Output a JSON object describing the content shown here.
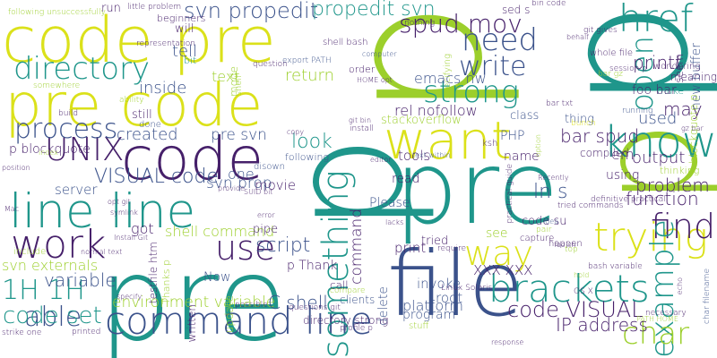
{
  "words": [
    {
      "text": "p",
      "color": "#9ccf2b"
    },
    {
      "text": "p",
      "color": "#1f968b"
    },
    {
      "text": "pre",
      "color": "#1f968b"
    },
    {
      "text": "pre",
      "color": "#1f968b"
    },
    {
      "text": "p",
      "color": "#1f968b"
    },
    {
      "text": "p",
      "color": "#9ccf2b"
    },
    {
      "text": "code pre",
      "color": "#dbe11a"
    },
    {
      "text": "pre code",
      "color": "#dbe11a"
    },
    {
      "text": "file",
      "color": "#3b528b"
    },
    {
      "text": "code",
      "color": "#46206a"
    },
    {
      "text": "want",
      "color": "#dbe11a"
    },
    {
      "text": "line line",
      "color": "#1f968b"
    },
    {
      "text": "command line",
      "color": "#3b528b"
    },
    {
      "text": "know",
      "color": "#1f968b"
    },
    {
      "text": "brackets",
      "color": "#1f968b"
    },
    {
      "text": "something",
      "color": "#1f968b"
    },
    {
      "text": "work",
      "color": "#46206a"
    },
    {
      "text": "use",
      "color": "#46206a"
    },
    {
      "text": "trying",
      "color": "#dbe11a"
    },
    {
      "text": "way",
      "color": "#dbe11a"
    },
    {
      "text": "find",
      "color": "#46206a"
    },
    {
      "text": "href",
      "color": "#1f968b"
    },
    {
      "text": "need",
      "color": "#3b528b"
    },
    {
      "text": "strong",
      "color": "#1f968b"
    },
    {
      "text": "directory",
      "color": "#1f968b"
    },
    {
      "text": "UNIX",
      "color": "#46206a"
    },
    {
      "text": "write",
      "color": "#3b528b"
    },
    {
      "text": "spud mov",
      "color": "#46206a"
    },
    {
      "text": "example",
      "color": "#1f968b"
    },
    {
      "text": "open",
      "color": "#1f968b"
    },
    {
      "text": "char",
      "color": "#9ccf2b"
    },
    {
      "text": "able",
      "color": "#3b528b"
    },
    {
      "text": "1H 1H",
      "color": "#1f968b"
    },
    {
      "text": "code set",
      "color": "#1f968b"
    },
    {
      "text": "process",
      "color": "#3b528b"
    },
    {
      "text": "code VISUAL",
      "color": "#46206a"
    },
    {
      "text": "svn propedit",
      "color": "#3b528b"
    },
    {
      "text": "propedit svn",
      "color": "#1f968b"
    },
    {
      "text": "VISUAL code",
      "color": "#3b528b"
    },
    {
      "text": "script",
      "color": "#3b528b"
    },
    {
      "text": "look",
      "color": "#1f968b"
    },
    {
      "text": "return",
      "color": "#9ccf2b"
    },
    {
      "text": "text",
      "color": "#9ccf2b"
    },
    {
      "text": "tell",
      "color": "#3b528b"
    },
    {
      "text": "inside",
      "color": "#3b528b"
    },
    {
      "text": "created",
      "color": "#3b528b"
    },
    {
      "text": "problem",
      "color": "#46206a"
    },
    {
      "text": "output",
      "color": "#46206a"
    },
    {
      "text": "function",
      "color": "#46206a"
    },
    {
      "text": "printf",
      "color": "#46206a"
    },
    {
      "text": "may",
      "color": "#46206a"
    },
    {
      "text": "used",
      "color": "#3b528b"
    },
    {
      "text": "ln s",
      "color": "#3b528b"
    },
    {
      "text": "bar spud",
      "color": "#46206a"
    },
    {
      "text": "shell command",
      "color": "#9ccf2b"
    },
    {
      "text": "environment variable",
      "color": "#9ccf2b"
    },
    {
      "text": "C shell",
      "color": "#3b528b"
    },
    {
      "text": "IP address",
      "color": "#46206a"
    },
    {
      "text": "svn externals",
      "color": "#9ccf2b"
    },
    {
      "text": "variable",
      "color": "#3b528b"
    },
    {
      "text": "pre svn",
      "color": "#3b528b"
    },
    {
      "text": "svn prop",
      "color": "#3b528b"
    },
    {
      "text": "got",
      "color": "#46206a"
    },
    {
      "text": "one",
      "color": "#3b528b"
    },
    {
      "text": "movie",
      "color": "#46206a"
    },
    {
      "text": "p blockquote",
      "color": "#46206a"
    },
    {
      "text": "server",
      "color": "#3b528b"
    },
    {
      "text": "command",
      "color": "#46206a"
    },
    {
      "text": "PHP",
      "color": "#3b528b"
    },
    {
      "text": "emacs nw",
      "color": "#3b528b"
    },
    {
      "text": "rel nofollow",
      "color": "#46206a"
    },
    {
      "text": "stackoverflow",
      "color": "#9ccf2b"
    },
    {
      "text": "tools",
      "color": "#46206a"
    },
    {
      "text": "print",
      "color": "#46206a"
    },
    {
      "text": "see",
      "color": "#9ccf2b"
    },
    {
      "text": "XXX XXX",
      "color": "#46206a"
    },
    {
      "text": "invoke",
      "color": "#3b528b"
    },
    {
      "text": "root",
      "color": "#3b528b"
    },
    {
      "text": "platform",
      "color": "#3b528b"
    },
    {
      "text": "delete",
      "color": "#3b528b"
    },
    {
      "text": "program",
      "color": "#3b528b"
    },
    {
      "text": "name",
      "color": "#46206a"
    },
    {
      "text": "read",
      "color": "#46206a"
    },
    {
      "text": "Please",
      "color": "#3b528b"
    },
    {
      "text": "tried",
      "color": "#46206a"
    },
    {
      "text": "Now",
      "color": "#3b528b"
    },
    {
      "text": "pipe",
      "color": "#46206a"
    },
    {
      "text": "p Thank",
      "color": "#46206a"
    },
    {
      "text": "class",
      "color": "#3b528b"
    },
    {
      "text": "thing",
      "color": "#3b528b"
    },
    {
      "text": "using",
      "color": "#46206a"
    },
    {
      "text": "compiled",
      "color": "#46206a"
    },
    {
      "text": "em",
      "color": "#46206a"
    },
    {
      "text": "new buffer",
      "color": "#3b528b"
    },
    {
      "text": "code su",
      "color": "#46206a"
    },
    {
      "text": "make",
      "color": "#1f968b"
    },
    {
      "text": "meaning",
      "color": "#46206a"
    },
    {
      "text": "foo bar",
      "color": "#46206a"
    },
    {
      "text": "blockquote p",
      "color": "#9ccf2b"
    },
    {
      "text": "seem",
      "color": "#46206a"
    },
    {
      "text": "still",
      "color": "#46206a"
    },
    {
      "text": "done",
      "color": "#3b528b"
    },
    {
      "text": "beginners",
      "color": "#46206a"
    },
    {
      "text": "run",
      "color": "#46206a"
    },
    {
      "text": "will",
      "color": "#46206a"
    },
    {
      "text": "bit",
      "color": "#1f968b"
    },
    {
      "text": "mode",
      "color": "#9ccf2b"
    },
    {
      "text": "shell",
      "color": "#9ccf2b"
    },
    {
      "text": "testfile htm",
      "color": "#46206a"
    },
    {
      "text": "Thanks p",
      "color": "#9ccf2b"
    },
    {
      "text": "written",
      "color": "#46206a"
    },
    {
      "text": "update",
      "color": "#9ccf2b"
    },
    {
      "text": "call",
      "color": "#46206a"
    },
    {
      "text": "clients",
      "color": "#3b528b"
    },
    {
      "text": "directory strong",
      "color": "#46206a"
    },
    {
      "text": "following",
      "color": "#3b528b"
    },
    {
      "text": "disown",
      "color": "#3b528b"
    },
    {
      "text": "following unsuccessfully",
      "color": "#9ccf2b"
    },
    {
      "text": "little problem",
      "color": "#46206a"
    },
    {
      "text": "representation",
      "color": "#46206a"
    },
    {
      "text": "somewhere",
      "color": "#9ccf2b"
    },
    {
      "text": "ability",
      "color": "#9ccf2b"
    },
    {
      "text": "build",
      "color": "#46206a"
    },
    {
      "text": "question",
      "color": "#46206a"
    },
    {
      "text": "export PATH",
      "color": "#3b528b"
    },
    {
      "text": "nothing",
      "color": "#46206a"
    },
    {
      "text": "sed s",
      "color": "#46206a"
    },
    {
      "text": "shell bash",
      "color": "#46206a"
    },
    {
      "text": "order",
      "color": "#46206a"
    },
    {
      "text": "computer",
      "color": "#3b528b"
    },
    {
      "text": "HOME opt",
      "color": "#46206a"
    },
    {
      "text": "specifying",
      "color": "#9ccf2b"
    },
    {
      "text": "git gives",
      "color": "#46206a"
    },
    {
      "text": "whole file",
      "color": "#46206a"
    },
    {
      "text": "wondering",
      "color": "#46206a"
    },
    {
      "text": "session p",
      "color": "#46206a"
    },
    {
      "text": "bar gz",
      "color": "#9ccf2b"
    },
    {
      "text": "bar txt",
      "color": "#46206a"
    },
    {
      "text": "behalf",
      "color": "#46206a"
    },
    {
      "text": "running",
      "color": "#3b528b"
    },
    {
      "text": "bunch",
      "color": "#dbe11a"
    },
    {
      "text": "option",
      "color": "#9ccf2b"
    },
    {
      "text": "gz bar",
      "color": "#46206a"
    },
    {
      "text": "Recently",
      "color": "#46206a"
    },
    {
      "text": "practical guide",
      "color": "#46206a"
    },
    {
      "text": "definitive practical",
      "color": "#46206a"
    },
    {
      "text": "tried commands",
      "color": "#46206a"
    },
    {
      "text": "thinking",
      "color": "#9ccf2b"
    },
    {
      "text": "bash variable",
      "color": "#46206a"
    },
    {
      "text": "capture",
      "color": "#46206a"
    },
    {
      "text": "happen",
      "color": "#46206a"
    },
    {
      "text": "top",
      "color": "#9ccf2b"
    },
    {
      "text": "hold",
      "color": "#9ccf2b"
    },
    {
      "text": "echo",
      "color": "#46206a"
    },
    {
      "text": "char filename",
      "color": "#3b528b"
    },
    {
      "text": "OS X",
      "color": "#46206a"
    },
    {
      "text": "necessary",
      "color": "#46206a"
    },
    {
      "text": "PATH HOME",
      "color": "#9ccf2b"
    },
    {
      "text": "response",
      "color": "#46206a"
    },
    {
      "text": "Linux Solaris",
      "color": "#46206a"
    },
    {
      "text": "require",
      "color": "#46206a"
    },
    {
      "text": "stuff",
      "color": "#9ccf2b"
    },
    {
      "text": "profile p",
      "color": "#46206a"
    },
    {
      "text": "compare",
      "color": "#9ccf2b"
    },
    {
      "text": "questions git",
      "color": "#46206a"
    },
    {
      "text": "possible",
      "color": "#46206a"
    },
    {
      "text": "strike one",
      "color": "#46206a"
    },
    {
      "text": "printed",
      "color": "#46206a"
    },
    {
      "text": "specify",
      "color": "#46206a"
    },
    {
      "text": "normal text",
      "color": "#46206a"
    },
    {
      "text": "Install Git",
      "color": "#46206a"
    },
    {
      "text": "include",
      "color": "#9ccf2b"
    },
    {
      "text": "opt git",
      "color": "#46206a"
    },
    {
      "text": "symlink",
      "color": "#46206a"
    },
    {
      "text": "SUID bit",
      "color": "#46206a"
    },
    {
      "text": "provide",
      "color": "#46206a"
    },
    {
      "text": "error",
      "color": "#46206a"
    },
    {
      "text": "editor",
      "color": "#46206a"
    },
    {
      "text": "text within",
      "color": "#3b528b"
    },
    {
      "text": "lacks",
      "color": "#46206a"
    },
    {
      "text": "pair",
      "color": "#9ccf2b"
    },
    {
      "text": "idea",
      "color": "#3b528b"
    },
    {
      "text": "foo sh",
      "color": "#46206a"
    },
    {
      "text": "ksh",
      "color": "#46206a"
    },
    {
      "text": "position",
      "color": "#46206a"
    },
    {
      "text": "index",
      "color": "#9ccf2b"
    },
    {
      "text": "Mac",
      "color": "#46206a"
    },
    {
      "text": "install",
      "color": "#46206a"
    },
    {
      "text": "copy",
      "color": "#46206a"
    },
    {
      "text": "git bin",
      "color": "#46206a"
    },
    {
      "text": "bin code",
      "color": "#46206a"
    }
  ]
}
